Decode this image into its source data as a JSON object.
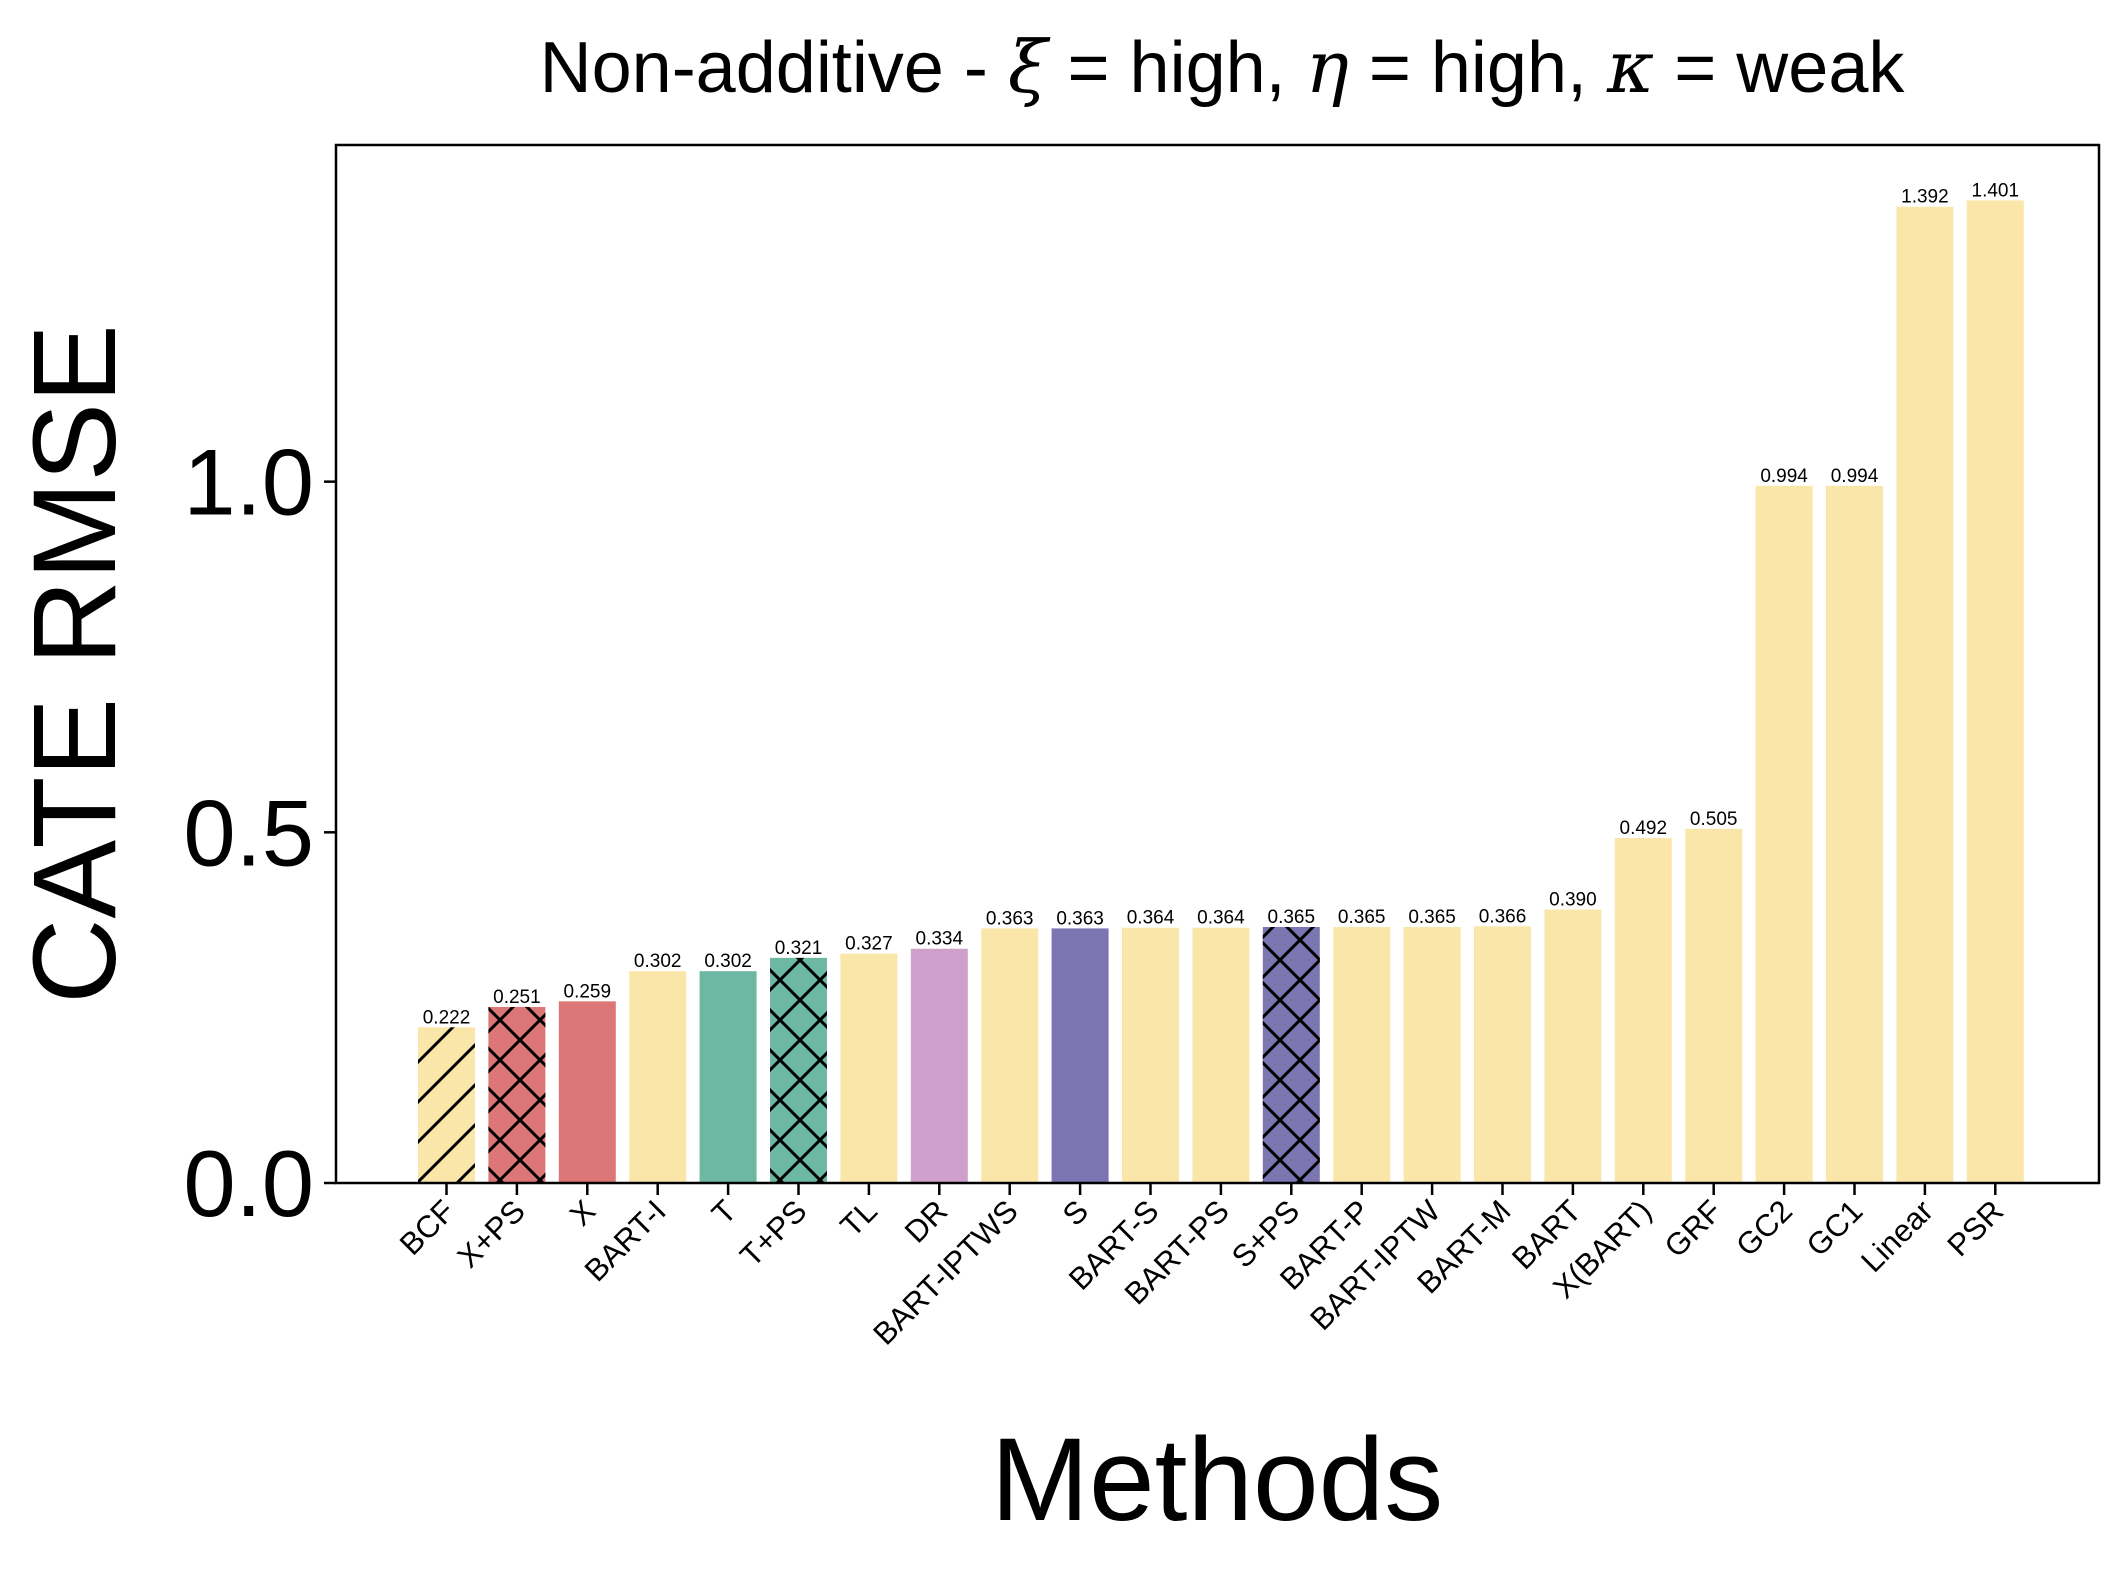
{
  "chart_data": {
    "type": "bar",
    "title_parts": [
      "Non-additive - ",
      "ξ",
      " = high, ",
      "η",
      " = high, ",
      "κ",
      " = weak"
    ],
    "xlabel": "Methods",
    "ylabel": "CATE RMSE",
    "ylim": [
      0,
      1.48
    ],
    "yticks": [
      0.0,
      0.5,
      1.0
    ],
    "ytick_labels": [
      "0.0",
      "0.5",
      "1.0"
    ],
    "categories": [
      "BCF",
      "X+PS",
      "X",
      "BART-I",
      "T",
      "T+PS",
      "TL",
      "DR",
      "BART-IPTWS",
      "S",
      "BART-S",
      "BART-PS",
      "S+PS",
      "BART-P",
      "BART-IPTW",
      "BART-M",
      "BART",
      "X(BART)",
      "GRF",
      "GC2",
      "GC1",
      "Linear",
      "PSR"
    ],
    "values": [
      0.222,
      0.251,
      0.259,
      0.302,
      0.302,
      0.321,
      0.327,
      0.334,
      0.363,
      0.363,
      0.364,
      0.364,
      0.365,
      0.365,
      0.365,
      0.366,
      0.39,
      0.492,
      0.505,
      0.994,
      0.994,
      1.392,
      1.401
    ],
    "value_labels": [
      "0.222",
      "0.251",
      "0.259",
      "0.302",
      "0.302",
      "0.321",
      "0.327",
      "0.334",
      "0.363",
      "0.363",
      "0.364",
      "0.364",
      "0.365",
      "0.365",
      "0.365",
      "0.366",
      "0.390",
      "0.492",
      "0.505",
      "0.994",
      "0.994",
      "1.392",
      "1.401"
    ],
    "colors": [
      "#FBE6A9",
      "#DD7676",
      "#DD7676",
      "#FBE6A9",
      "#6CB8A2",
      "#6CB8A2",
      "#FBE6A9",
      "#D0A0CC",
      "#FBE6A9",
      "#7B76B2",
      "#FBE6A9",
      "#FBE6A9",
      "#7B76B2",
      "#FBE6A9",
      "#FBE6A9",
      "#FBE6A9",
      "#FBE6A9",
      "#FBE6A9",
      "#FBE6A9",
      "#FBE6A9",
      "#FBE6A9",
      "#FBE6A9",
      "#FBE6A9"
    ],
    "hatches": [
      "diagonal",
      "cross",
      "none",
      "none",
      "none",
      "cross",
      "none",
      "none",
      "none",
      "none",
      "none",
      "none",
      "cross",
      "none",
      "none",
      "none",
      "none",
      "none",
      "none",
      "none",
      "none",
      "none",
      "none"
    ],
    "grid": false,
    "legend": "none"
  }
}
